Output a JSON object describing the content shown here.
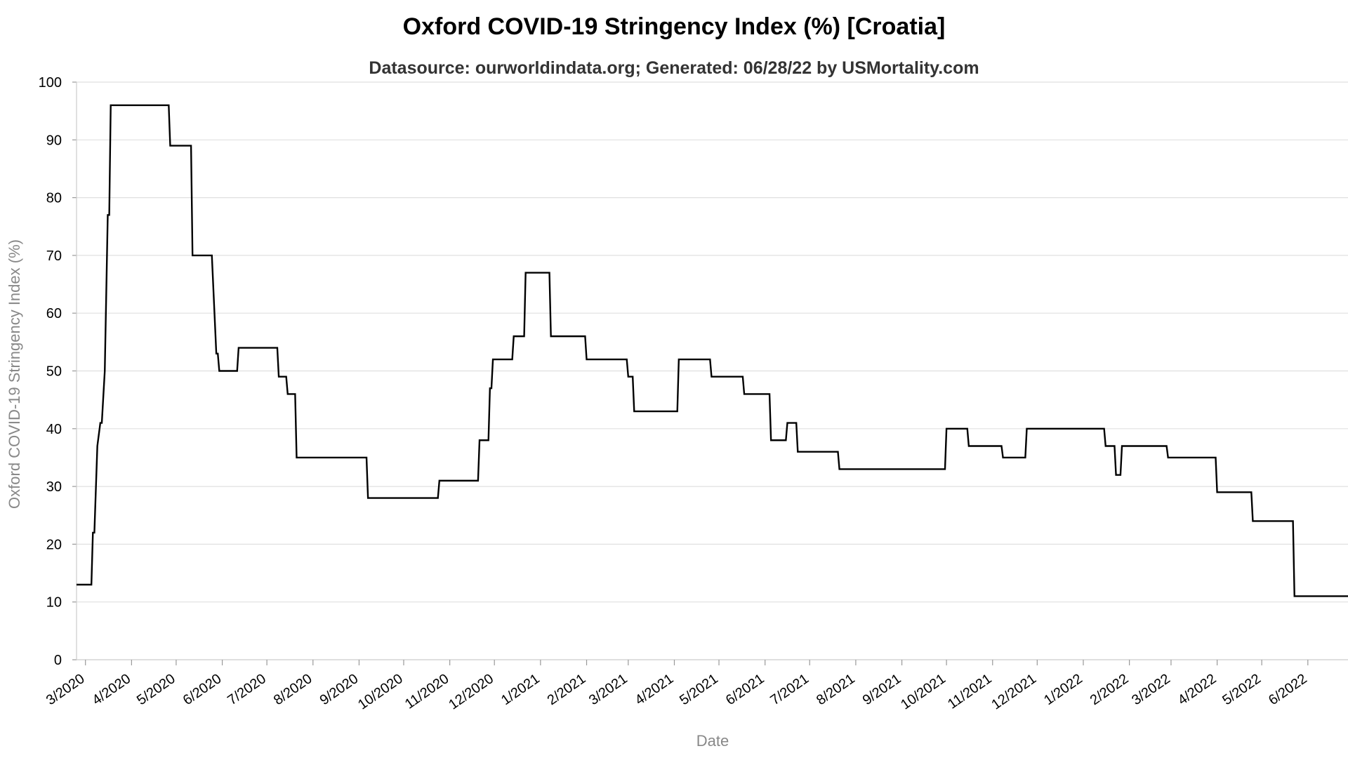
{
  "chart_data": {
    "type": "line",
    "title": "Oxford COVID-19 Stringency Index (%) [Croatia]",
    "subtitle": "Datasource: ourworldindata.org; Generated: 06/28/22 by USMortality.com",
    "xlabel": "Date",
    "ylabel": "Oxford COVID-19 Stringency Index (%)",
    "ylim": [
      0,
      100
    ],
    "xlim": [
      "2020-02-24",
      "2022-06-28"
    ],
    "yticks": [
      0,
      10,
      20,
      30,
      40,
      50,
      60,
      70,
      80,
      90,
      100
    ],
    "xticks": [
      {
        "label": "3/2020",
        "date": "2020-03-01"
      },
      {
        "label": "4/2020",
        "date": "2020-04-01"
      },
      {
        "label": "5/2020",
        "date": "2020-05-01"
      },
      {
        "label": "6/2020",
        "date": "2020-06-01"
      },
      {
        "label": "7/2020",
        "date": "2020-07-01"
      },
      {
        "label": "8/2020",
        "date": "2020-08-01"
      },
      {
        "label": "9/2020",
        "date": "2020-09-01"
      },
      {
        "label": "10/2020",
        "date": "2020-10-01"
      },
      {
        "label": "11/2020",
        "date": "2020-11-01"
      },
      {
        "label": "12/2020",
        "date": "2020-12-01"
      },
      {
        "label": "1/2021",
        "date": "2021-01-01"
      },
      {
        "label": "2/2021",
        "date": "2021-02-01"
      },
      {
        "label": "3/2021",
        "date": "2021-03-01"
      },
      {
        "label": "4/2021",
        "date": "2021-04-01"
      },
      {
        "label": "5/2021",
        "date": "2021-05-01"
      },
      {
        "label": "6/2021",
        "date": "2021-06-01"
      },
      {
        "label": "7/2021",
        "date": "2021-07-01"
      },
      {
        "label": "8/2021",
        "date": "2021-08-01"
      },
      {
        "label": "9/2021",
        "date": "2021-09-01"
      },
      {
        "label": "10/2021",
        "date": "2021-10-01"
      },
      {
        "label": "11/2021",
        "date": "2021-11-01"
      },
      {
        "label": "12/2021",
        "date": "2021-12-01"
      },
      {
        "label": "1/2022",
        "date": "2022-01-01"
      },
      {
        "label": "2/2022",
        "date": "2022-02-01"
      },
      {
        "label": "3/2022",
        "date": "2022-03-01"
      },
      {
        "label": "4/2022",
        "date": "2022-04-01"
      },
      {
        "label": "5/2022",
        "date": "2022-05-01"
      },
      {
        "label": "6/2022",
        "date": "2022-06-01"
      }
    ],
    "grid": true,
    "line_color": "#000000",
    "series": [
      {
        "points": [
          [
            "2020-02-24",
            13
          ],
          [
            "2020-03-05",
            13
          ],
          [
            "2020-03-06",
            22
          ],
          [
            "2020-03-07",
            22
          ],
          [
            "2020-03-09",
            37
          ],
          [
            "2020-03-11",
            41
          ],
          [
            "2020-03-12",
            41
          ],
          [
            "2020-03-14",
            50
          ],
          [
            "2020-03-16",
            77
          ],
          [
            "2020-03-17",
            77
          ],
          [
            "2020-03-18",
            96
          ],
          [
            "2020-04-26",
            96
          ],
          [
            "2020-04-27",
            89
          ],
          [
            "2020-05-11",
            89
          ],
          [
            "2020-05-12",
            70
          ],
          [
            "2020-05-25",
            70
          ],
          [
            "2020-05-28",
            53
          ],
          [
            "2020-05-29",
            53
          ],
          [
            "2020-05-30",
            50
          ],
          [
            "2020-06-11",
            50
          ],
          [
            "2020-06-12",
            54
          ],
          [
            "2020-07-08",
            54
          ],
          [
            "2020-07-09",
            49
          ],
          [
            "2020-07-14",
            49
          ],
          [
            "2020-07-15",
            46
          ],
          [
            "2020-07-20",
            46
          ],
          [
            "2020-07-21",
            35
          ],
          [
            "2020-09-06",
            35
          ],
          [
            "2020-09-07",
            28
          ],
          [
            "2020-10-24",
            28
          ],
          [
            "2020-10-25",
            31
          ],
          [
            "2020-11-20",
            31
          ],
          [
            "2020-11-21",
            38
          ],
          [
            "2020-11-27",
            38
          ],
          [
            "2020-11-28",
            47
          ],
          [
            "2020-11-29",
            47
          ],
          [
            "2020-11-30",
            52
          ],
          [
            "2020-12-13",
            52
          ],
          [
            "2020-12-14",
            56
          ],
          [
            "2020-12-21",
            56
          ],
          [
            "2020-12-22",
            67
          ],
          [
            "2021-01-07",
            67
          ],
          [
            "2021-01-08",
            56
          ],
          [
            "2021-01-31",
            56
          ],
          [
            "2021-02-01",
            52
          ],
          [
            "2021-02-28",
            52
          ],
          [
            "2021-03-01",
            49
          ],
          [
            "2021-03-04",
            49
          ],
          [
            "2021-03-05",
            43
          ],
          [
            "2021-04-03",
            43
          ],
          [
            "2021-04-04",
            52
          ],
          [
            "2021-04-25",
            52
          ],
          [
            "2021-04-26",
            49
          ],
          [
            "2021-05-17",
            49
          ],
          [
            "2021-05-18",
            46
          ],
          [
            "2021-06-04",
            46
          ],
          [
            "2021-06-05",
            38
          ],
          [
            "2021-06-15",
            38
          ],
          [
            "2021-06-16",
            41
          ],
          [
            "2021-06-22",
            41
          ],
          [
            "2021-06-23",
            36
          ],
          [
            "2021-07-20",
            36
          ],
          [
            "2021-07-21",
            33
          ],
          [
            "2021-09-30",
            33
          ],
          [
            "2021-10-01",
            40
          ],
          [
            "2021-10-15",
            40
          ],
          [
            "2021-10-16",
            37
          ],
          [
            "2021-11-07",
            37
          ],
          [
            "2021-11-08",
            35
          ],
          [
            "2021-11-23",
            35
          ],
          [
            "2021-11-24",
            40
          ],
          [
            "2022-01-15",
            40
          ],
          [
            "2022-01-16",
            37
          ],
          [
            "2022-01-22",
            37
          ],
          [
            "2022-01-23",
            32
          ],
          [
            "2022-01-26",
            32
          ],
          [
            "2022-01-27",
            37
          ],
          [
            "2022-02-26",
            37
          ],
          [
            "2022-02-27",
            35
          ],
          [
            "2022-03-31",
            35
          ],
          [
            "2022-04-01",
            29
          ],
          [
            "2022-04-24",
            29
          ],
          [
            "2022-04-25",
            24
          ],
          [
            "2022-05-22",
            24
          ],
          [
            "2022-05-23",
            11
          ],
          [
            "2022-06-28",
            11
          ]
        ]
      }
    ]
  }
}
